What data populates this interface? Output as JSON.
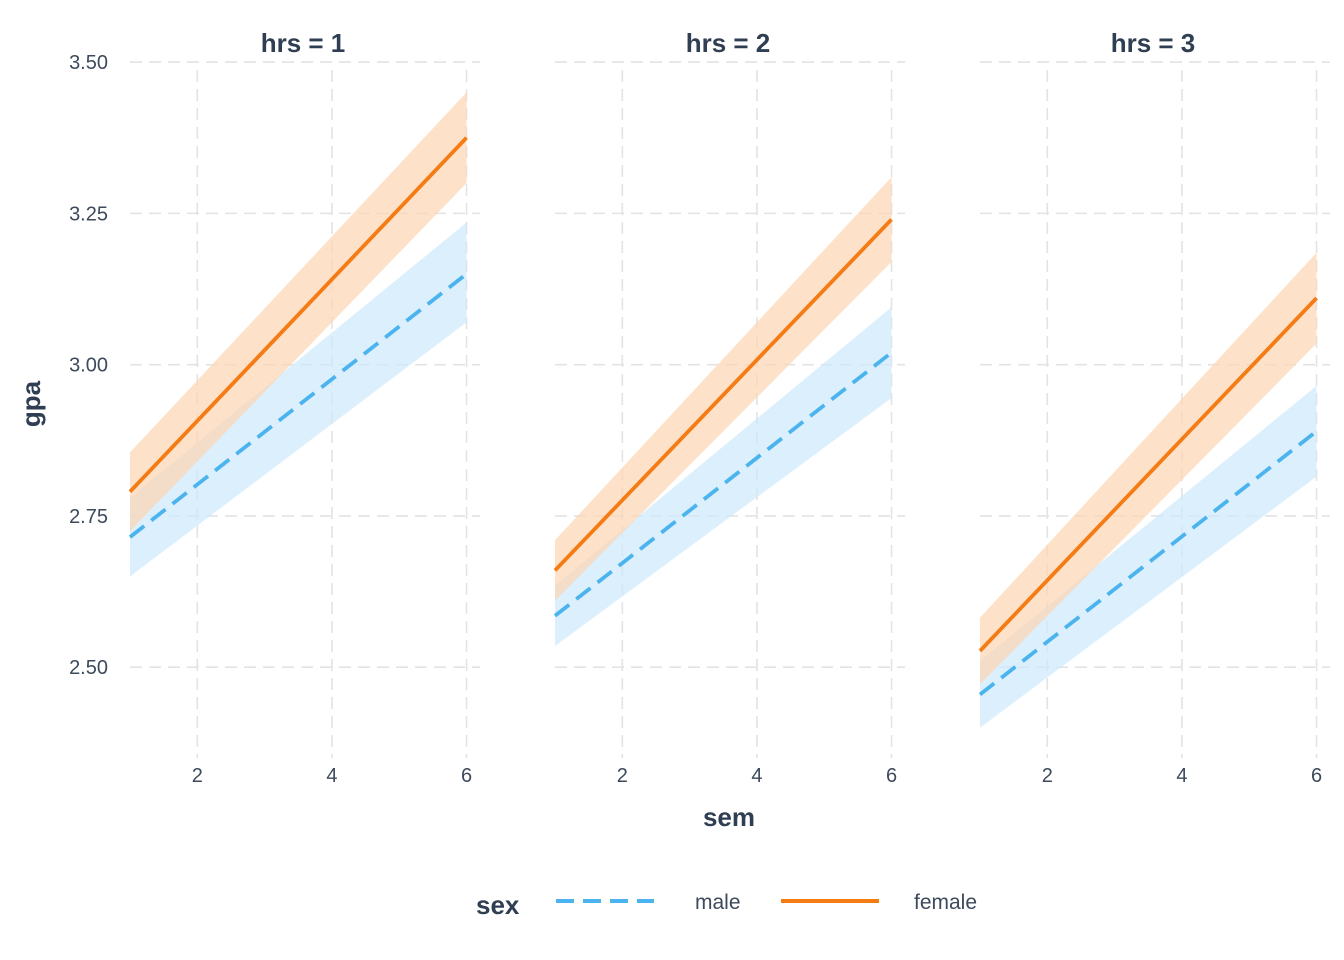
{
  "chart_data": {
    "type": "line",
    "facet_variable": "hrs",
    "xlabel": "sem",
    "ylabel": "gpa",
    "xlim": [
      1,
      6.2
    ],
    "ylim": [
      2.35,
      3.52
    ],
    "x_ticks": [
      2,
      4,
      6
    ],
    "x_tick_labels": [
      "2",
      "4",
      "6"
    ],
    "y_ticks": [
      2.5,
      2.75,
      3.0,
      3.25,
      3.5
    ],
    "y_tick_labels": [
      "2.50",
      "2.75",
      "3.00",
      "3.25",
      "3.50"
    ],
    "grid": true,
    "legend": {
      "title": "sex",
      "position": "bottom",
      "entries": [
        {
          "label": "male",
          "color": "#4bb4ee",
          "linetype": "dashed"
        },
        {
          "label": "female",
          "color": "#f57c14",
          "linetype": "solid"
        }
      ]
    },
    "ribbon_colors": {
      "male": "#cfe9fb",
      "female": "#fdd5b4"
    },
    "panels": [
      {
        "title": "hrs = 1",
        "series": [
          {
            "name": "male",
            "x": [
              1,
              6
            ],
            "y": [
              2.715,
              3.15
            ],
            "lower": [
              2.65,
              3.07
            ],
            "upper": [
              2.78,
              3.235
            ]
          },
          {
            "name": "female",
            "x": [
              1,
              6
            ],
            "y": [
              2.79,
              3.375
            ],
            "lower": [
              2.725,
              3.3
            ],
            "upper": [
              2.855,
              3.45
            ]
          }
        ]
      },
      {
        "title": "hrs = 2",
        "series": [
          {
            "name": "male",
            "x": [
              1,
              6
            ],
            "y": [
              2.585,
              3.02
            ],
            "lower": [
              2.535,
              2.945
            ],
            "upper": [
              2.635,
              3.095
            ]
          },
          {
            "name": "female",
            "x": [
              1,
              6
            ],
            "y": [
              2.66,
              3.24
            ],
            "lower": [
              2.61,
              3.17
            ],
            "upper": [
              2.71,
              3.31
            ]
          }
        ]
      },
      {
        "title": "hrs = 3",
        "series": [
          {
            "name": "male",
            "x": [
              1,
              6
            ],
            "y": [
              2.455,
              2.89
            ],
            "lower": [
              2.4,
              2.815
            ],
            "upper": [
              2.51,
              2.965
            ]
          },
          {
            "name": "female",
            "x": [
              1,
              6
            ],
            "y": [
              2.527,
              3.11
            ],
            "lower": [
              2.472,
              3.035
            ],
            "upper": [
              2.582,
              3.185
            ]
          }
        ]
      }
    ]
  }
}
